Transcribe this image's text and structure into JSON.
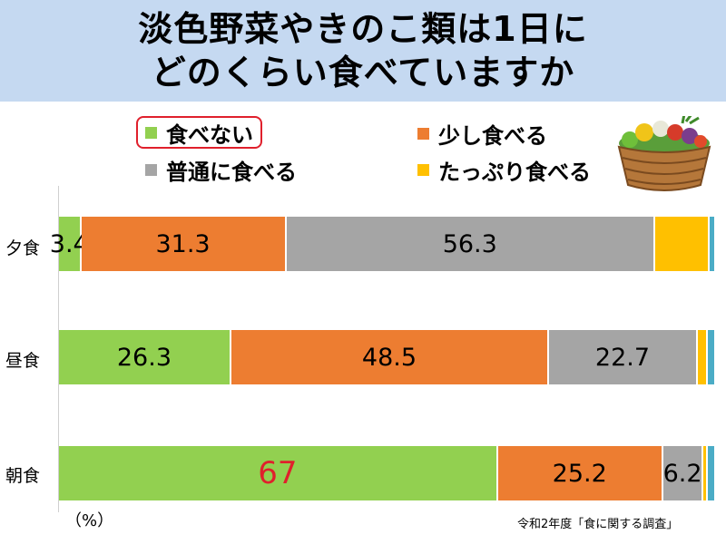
{
  "title": {
    "line1": "淡色野菜やきのこ類は1日に",
    "line2": "どのくらい食べていますか"
  },
  "legend": [
    {
      "label": "食べない",
      "color": "#92d050",
      "highlighted": true
    },
    {
      "label": "少し食べる",
      "color": "#ed7d31",
      "highlighted": false
    },
    {
      "label": "普通に食べる",
      "color": "#a5a5a5",
      "highlighted": false
    },
    {
      "label": "たっぷり食べる",
      "color": "#ffc000",
      "highlighted": false
    }
  ],
  "unit_label": "（%）",
  "source": "令和2年度「食に関する調査」",
  "chart_data": {
    "type": "bar",
    "orientation": "horizontal",
    "stacked": true,
    "xlim": [
      0,
      100
    ],
    "categories": [
      "夕食",
      "昼食",
      "朝食"
    ],
    "series": [
      {
        "name": "食べない",
        "color": "#92d050",
        "values": [
          3.4,
          26.3,
          67
        ],
        "labels": [
          "3.4",
          "26.3",
          "67"
        ]
      },
      {
        "name": "少し食べる",
        "color": "#ed7d31",
        "values": [
          31.3,
          48.5,
          25.2
        ],
        "labels": [
          "31.3",
          "48.5",
          "25.2"
        ]
      },
      {
        "name": "普通に食べる",
        "color": "#a5a5a5",
        "values": [
          56.3,
          22.7,
          6.2
        ],
        "labels": [
          "56.3",
          "22.7",
          "6.2"
        ]
      },
      {
        "name": "たっぷり食べる",
        "color": "#ffc000",
        "values": [
          8.3,
          1.5,
          0.6
        ],
        "labels": [
          "",
          "",
          ""
        ]
      },
      {
        "name": "",
        "color": "#4bacc6",
        "values": [
          0.7,
          1.0,
          1.0
        ],
        "labels": [
          "",
          "",
          ""
        ]
      }
    ],
    "highlight_label_color": "#e0202c",
    "highlight": {
      "category": "朝食",
      "series": "食べない"
    }
  }
}
